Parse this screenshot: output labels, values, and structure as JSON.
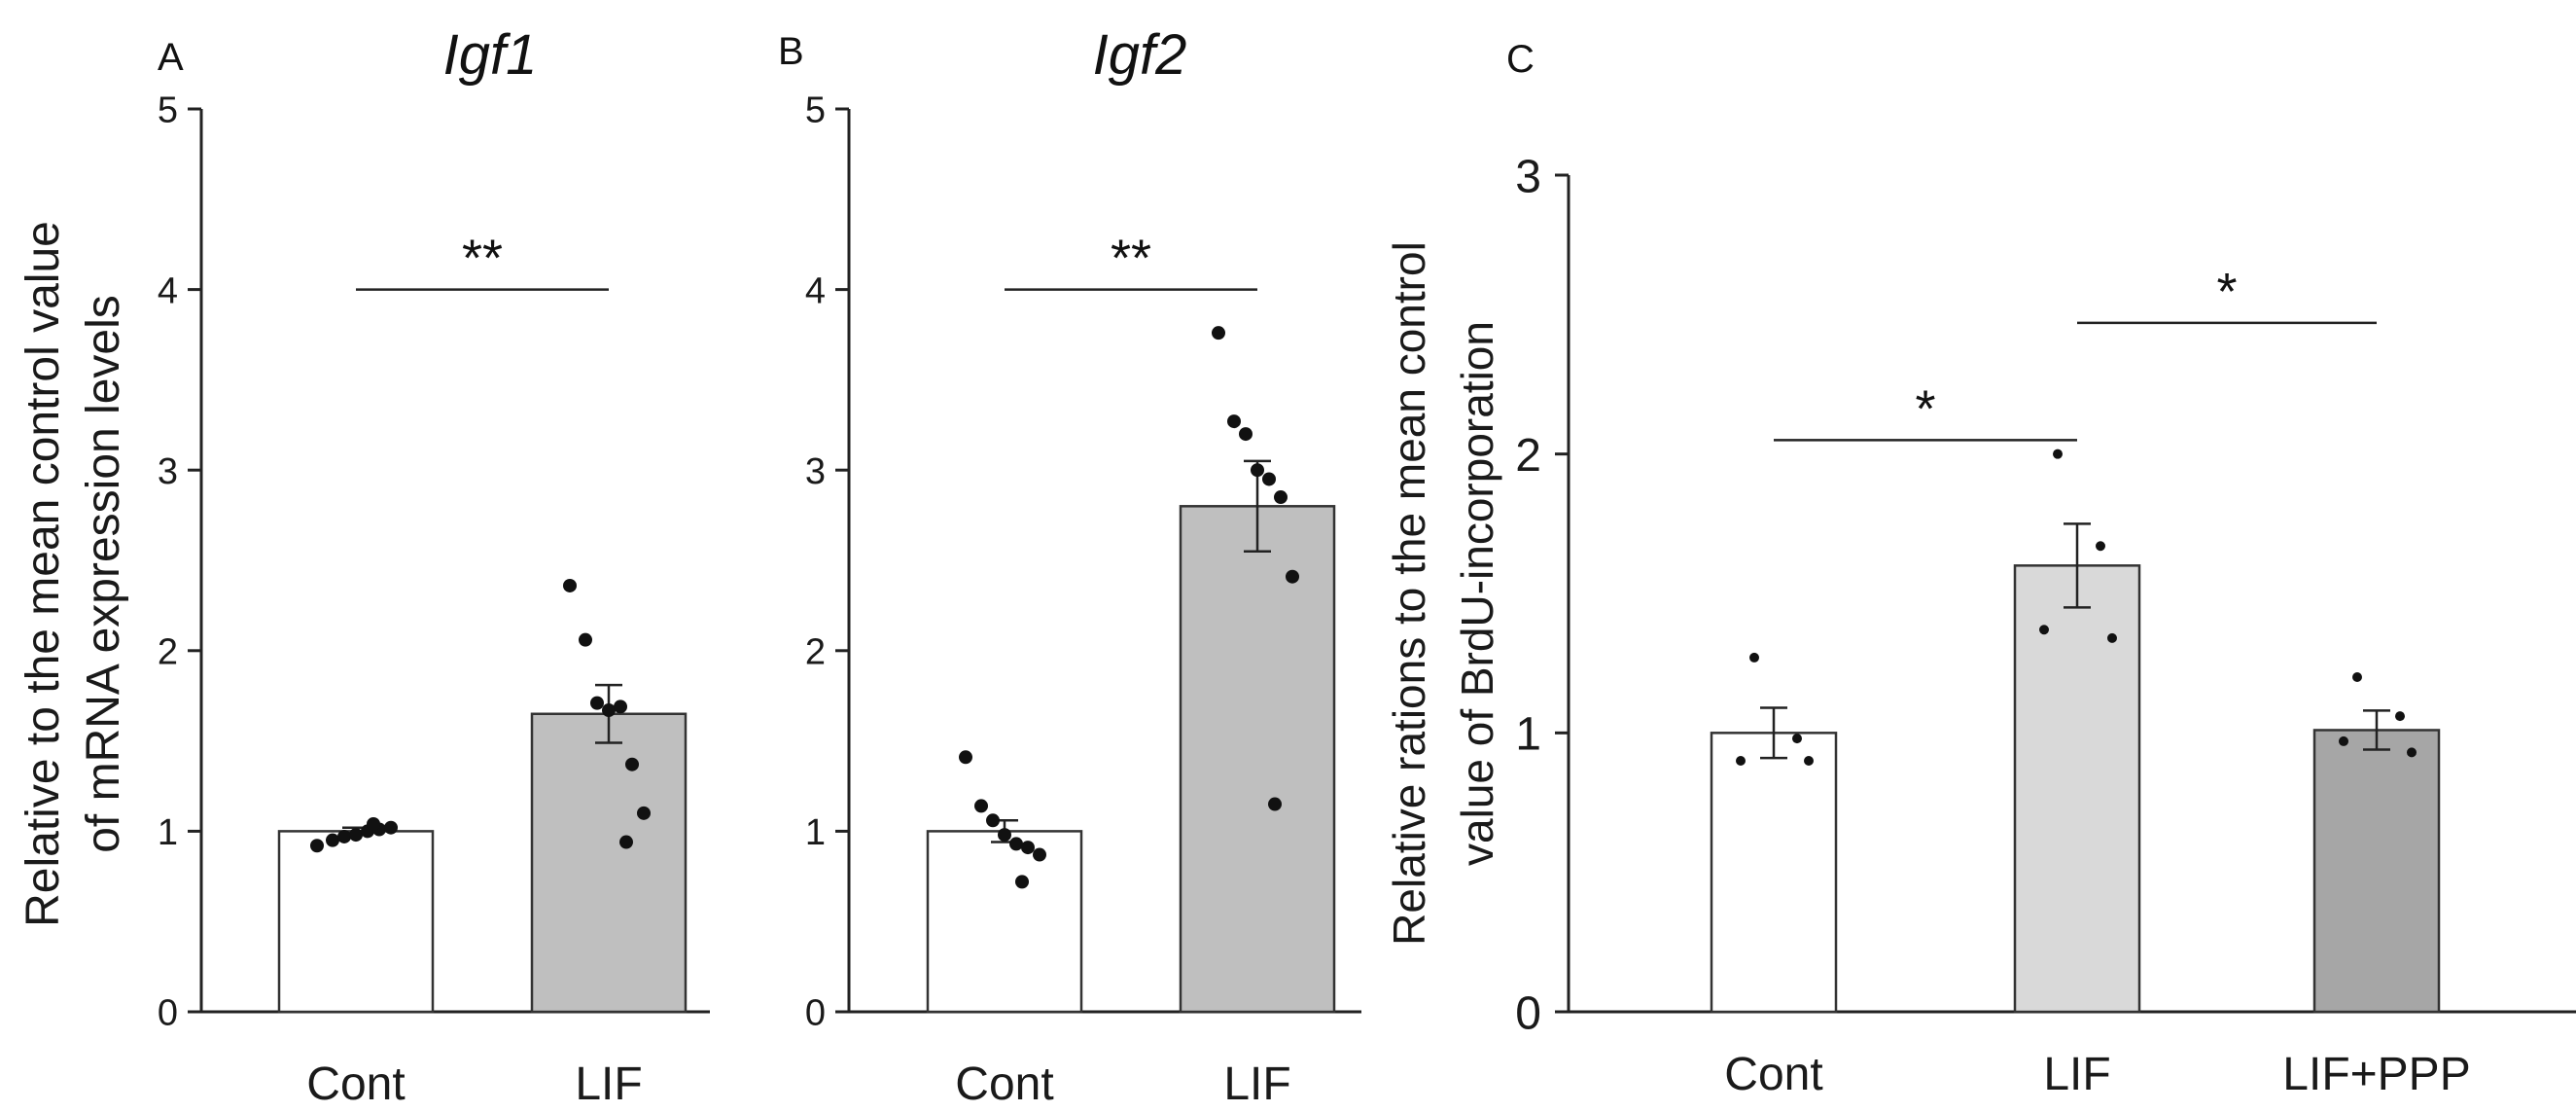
{
  "chart_data": [
    {
      "panel": "A",
      "type": "bar",
      "title": "Igf1",
      "ylabel": "Relative to the mean control value of mRNA expression levels",
      "ylabel_lines": [
        "Relative to the mean control value",
        "of mRNA expression levels"
      ],
      "ylim": [
        0,
        5
      ],
      "yticks": [
        0,
        1,
        2,
        3,
        4,
        5
      ],
      "categories": [
        "Cont",
        "LIF"
      ],
      "values": [
        1.0,
        1.65
      ],
      "sem": [
        0.02,
        0.16
      ],
      "bar_colors": [
        "#ffffff",
        "#bfbfbf"
      ],
      "points": [
        [
          0.92,
          0.95,
          0.97,
          0.98,
          1.0,
          1.01,
          1.02,
          1.04
        ],
        [
          2.36,
          2.06,
          1.71,
          1.67,
          1.69,
          1.37,
          1.1,
          0.94
        ]
      ],
      "significance": [
        {
          "from": 0,
          "to": 1,
          "y": 4.0,
          "label": "**"
        }
      ]
    },
    {
      "panel": "B",
      "type": "bar",
      "title": "Igf2",
      "ylabel": "",
      "ylim": [
        0,
        5
      ],
      "yticks": [
        0,
        1,
        2,
        3,
        4,
        5
      ],
      "categories": [
        "Cont",
        "LIF"
      ],
      "values": [
        1.0,
        2.8
      ],
      "sem": [
        0.06,
        0.25
      ],
      "bar_colors": [
        "#ffffff",
        "#bfbfbf"
      ],
      "points": [
        [
          1.41,
          1.14,
          1.06,
          0.98,
          0.93,
          0.91,
          0.87,
          0.72
        ],
        [
          3.76,
          3.27,
          3.2,
          3.0,
          2.95,
          2.85,
          2.41,
          1.15
        ]
      ],
      "significance": [
        {
          "from": 0,
          "to": 1,
          "y": 4.0,
          "label": "**"
        }
      ]
    },
    {
      "panel": "C",
      "type": "bar",
      "title": "",
      "ylabel": "Relative rations to the mean control value of BrdU-incorporation",
      "ylabel_lines": [
        "Relative rations to the mean control",
        "value of BrdU-incorporation"
      ],
      "ylim": [
        0,
        3
      ],
      "yticks": [
        0,
        1,
        2,
        3
      ],
      "categories": [
        "Cont",
        "LIF",
        "LIF+PPP"
      ],
      "values": [
        1.0,
        1.6,
        1.01
      ],
      "sem": [
        0.09,
        0.15,
        0.07
      ],
      "bar_colors": [
        "#ffffff",
        "#d9d9d9",
        "#a6a6a6"
      ],
      "points": [
        [
          1.27,
          0.98,
          0.9,
          0.9
        ],
        [
          2.0,
          1.67,
          1.37,
          1.34
        ],
        [
          1.2,
          1.06,
          0.97,
          0.93
        ]
      ],
      "significance": [
        {
          "from": 0,
          "to": 1,
          "y": 2.05,
          "label": "*"
        },
        {
          "from": 1,
          "to": 2,
          "y": 2.47,
          "label": "*"
        }
      ]
    }
  ]
}
